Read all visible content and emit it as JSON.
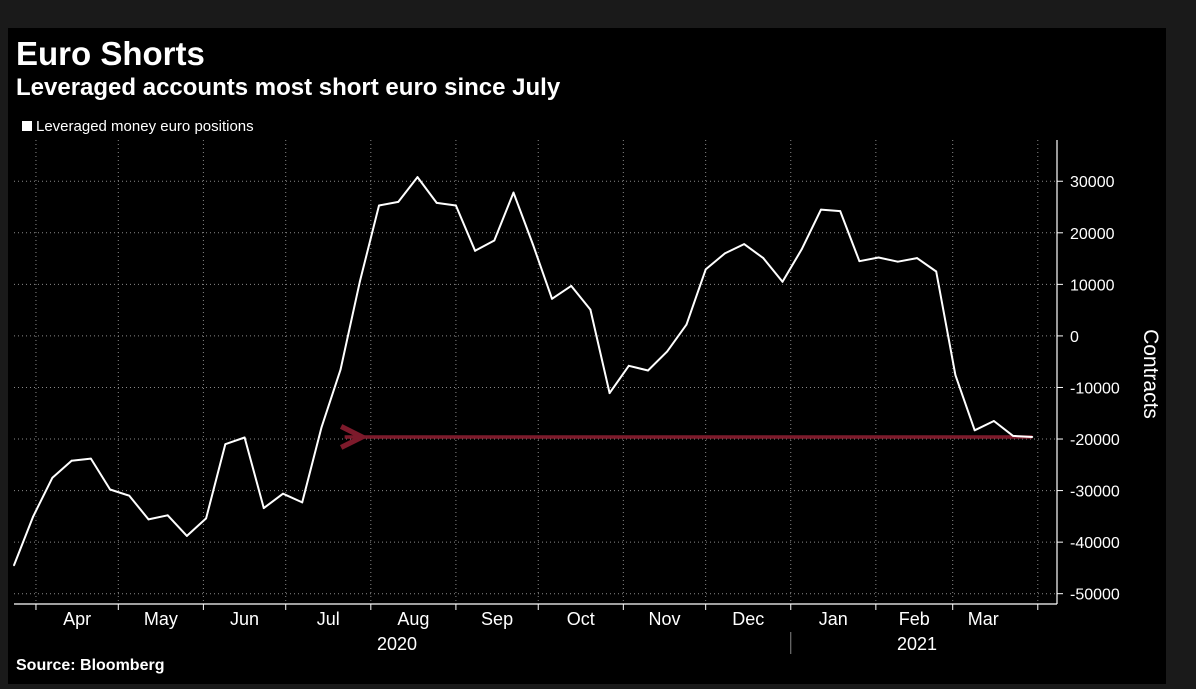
{
  "title": "Euro Shorts",
  "subtitle": "Leveraged accounts most short euro since July",
  "source": "Source: Bloomberg",
  "colors": {
    "background": "#000000",
    "line": "#ffffff",
    "arrow": "#7d1a2b",
    "grid": "#8a8a8a"
  },
  "chart_data": {
    "type": "line",
    "title": "Euro Shorts",
    "subtitle": "Leveraged accounts most short euro since July",
    "ylabel": "Contracts",
    "xlabel": "",
    "ylim": [
      -52000,
      38000
    ],
    "yticks": [
      30000,
      20000,
      10000,
      0,
      -10000,
      -20000,
      -30000,
      -40000,
      -50000
    ],
    "ytick_labels": [
      "30000",
      "20000",
      "10000",
      "0",
      "-10000",
      "-20000",
      "-30000",
      "-40000",
      "-50000"
    ],
    "month_labels": [
      "Apr",
      "May",
      "Jun",
      "Jul",
      "Aug",
      "Sep",
      "Oct",
      "Nov",
      "Dec",
      "Jan",
      "Feb",
      "Mar"
    ],
    "year_labels": [
      "2020",
      "2021"
    ],
    "grid": true,
    "legend_position": "top-left",
    "series": [
      {
        "name": "Leveraged money euro positions",
        "x": [
          "2020-03-24",
          "2020-03-31",
          "2020-04-07",
          "2020-04-14",
          "2020-04-21",
          "2020-04-28",
          "2020-05-05",
          "2020-05-12",
          "2020-05-19",
          "2020-05-26",
          "2020-06-02",
          "2020-06-09",
          "2020-06-16",
          "2020-06-23",
          "2020-06-30",
          "2020-07-07",
          "2020-07-14",
          "2020-07-21",
          "2020-07-28",
          "2020-08-04",
          "2020-08-11",
          "2020-08-18",
          "2020-08-25",
          "2020-09-01",
          "2020-09-08",
          "2020-09-15",
          "2020-09-22",
          "2020-09-29",
          "2020-10-06",
          "2020-10-13",
          "2020-10-20",
          "2020-10-27",
          "2020-11-03",
          "2020-11-10",
          "2020-11-17",
          "2020-11-24",
          "2020-12-01",
          "2020-12-08",
          "2020-12-15",
          "2020-12-22",
          "2020-12-29",
          "2021-01-05",
          "2021-01-12",
          "2021-01-19",
          "2021-01-26",
          "2021-02-02",
          "2021-02-09",
          "2021-02-16",
          "2021-02-23",
          "2021-03-02",
          "2021-03-09",
          "2021-03-16",
          "2021-03-23",
          "2021-03-30"
        ],
        "values": [
          -44500,
          -35000,
          -27500,
          -24200,
          -23800,
          -29800,
          -31000,
          -35600,
          -34800,
          -38800,
          -35400,
          -21000,
          -19700,
          -33400,
          -30600,
          -32300,
          -17800,
          -6500,
          10500,
          25300,
          26000,
          30800,
          25800,
          25300,
          16500,
          18500,
          27800,
          17800,
          7200,
          9700,
          5100,
          -11100,
          -5800,
          -6700,
          -3000,
          2200,
          12900,
          16000,
          17800,
          15100,
          10500,
          16800,
          24500,
          24200,
          14500,
          15200,
          14400,
          15100,
          12500,
          -7600,
          -18300,
          -16500,
          -19400,
          -19600
        ]
      }
    ],
    "annotations": [
      {
        "type": "arrow",
        "value": -19600,
        "from": "2021-03-30",
        "to": "2020-07-21",
        "color": "#7d1a2b"
      }
    ]
  }
}
